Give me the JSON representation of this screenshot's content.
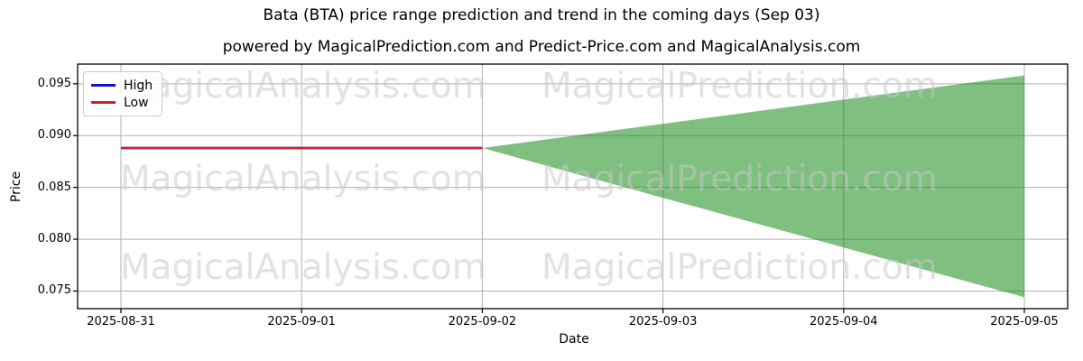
{
  "page": {
    "title": "Bata (BTA) price range prediction and trend in the coming days (Sep 03)",
    "subtitle": "powered by MagicalPrediction.com and Predict-Price.com and MagicalAnalysis.com"
  },
  "chart_data": {
    "type": "line",
    "title": "Bata (BTA) price range prediction and trend in the coming days (Sep 03)",
    "subtitle": "powered by MagicalPrediction.com and Predict-Price.com and MagicalAnalysis.com",
    "xlabel": "Date",
    "ylabel": "Price",
    "x_tick_labels": [
      "2025-08-31",
      "2025-09-01",
      "2025-09-02",
      "2025-09-03",
      "2025-09-04",
      "2025-09-05"
    ],
    "y_tick_labels": [
      "0.095",
      "0.090",
      "0.085",
      "0.080",
      "0.075"
    ],
    "y_tick_values": [
      0.095,
      0.09,
      0.085,
      0.08,
      0.075
    ],
    "ylim": [
      0.0733,
      0.0969
    ],
    "grid": true,
    "grid_color": "#b0b0b0",
    "legend": {
      "position": "upper-left",
      "entries": [
        {
          "label": "High",
          "color": "#1414cc"
        },
        {
          "label": "Low",
          "color": "#cf2129"
        }
      ]
    },
    "series": [
      {
        "name": "High",
        "color": "#1414cc",
        "x": [
          "2025-08-31",
          "2025-09-01",
          "2025-09-02"
        ],
        "values": [
          0.0888,
          0.0888,
          0.0888
        ]
      },
      {
        "name": "Low",
        "color": "#cf2129",
        "x": [
          "2025-08-31",
          "2025-09-01",
          "2025-09-02"
        ],
        "values": [
          0.0888,
          0.0888,
          0.0888
        ]
      }
    ],
    "prediction_band": {
      "start_date": "2025-09-02",
      "end_date": "2025-09-05",
      "start_value": 0.0888,
      "end_high": 0.0958,
      "end_low": 0.0744,
      "fill_color": "#008000",
      "fill_opacity": 0.5
    },
    "watermarks": {
      "left_text": "MagicalAnalysis.com",
      "right_text": "MagicalPrediction.com"
    }
  }
}
